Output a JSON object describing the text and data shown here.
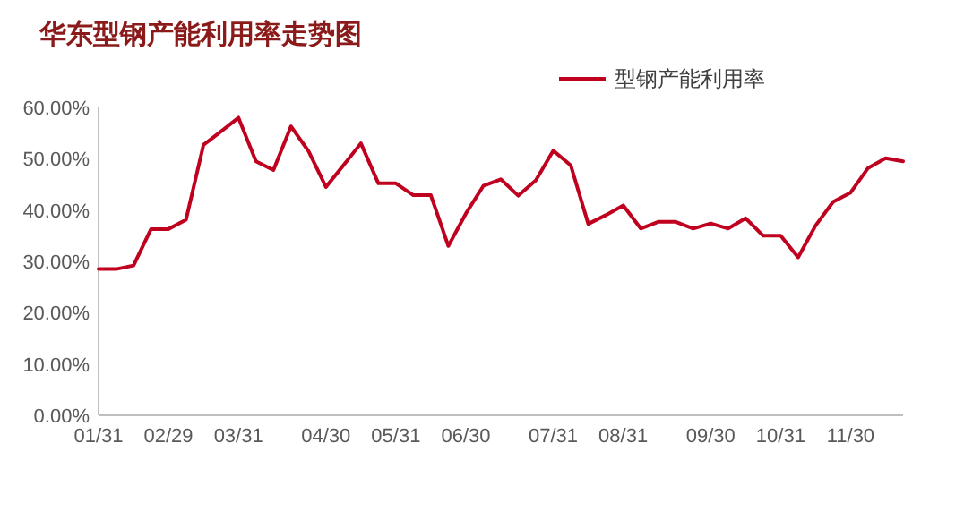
{
  "chart_data": {
    "type": "line",
    "title": "华东型钢产能利用率走势图",
    "categories": [
      "01/31",
      null,
      null,
      null,
      "02/29",
      null,
      null,
      null,
      "03/31",
      null,
      null,
      null,
      null,
      "04/30",
      null,
      null,
      null,
      "05/31",
      null,
      null,
      null,
      "06/30",
      null,
      null,
      null,
      null,
      "07/31",
      null,
      null,
      null,
      "08/31",
      null,
      null,
      null,
      null,
      "09/30",
      null,
      null,
      null,
      "10/31",
      null,
      null,
      null,
      "11/30",
      null,
      null,
      null
    ],
    "series": [
      {
        "name": "型钢产能利用率",
        "color": "#c0001f",
        "values": [
          28.5,
          28.5,
          29.2,
          36.3,
          36.3,
          38.1,
          52.7,
          55.3,
          58.0,
          49.5,
          47.8,
          56.3,
          51.5,
          44.5,
          48.7,
          53.0,
          45.2,
          45.2,
          42.9,
          42.9,
          33.0,
          39.3,
          44.7,
          46.0,
          42.8,
          45.8,
          51.6,
          48.7,
          37.3,
          39.0,
          40.9,
          36.4,
          37.7,
          37.7,
          36.4,
          37.4,
          36.4,
          38.4,
          35.0,
          35.0,
          30.8,
          37.0,
          41.6,
          43.4,
          48.2,
          50.1,
          49.5
        ]
      }
    ],
    "ylim": [
      0,
      60
    ],
    "yticks": [
      {
        "value": 0,
        "label": "0.00%"
      },
      {
        "value": 10,
        "label": "10.00%"
      },
      {
        "value": 20,
        "label": "20.00%"
      },
      {
        "value": 30,
        "label": "30.00%"
      },
      {
        "value": 40,
        "label": "40.00%"
      },
      {
        "value": 50,
        "label": "50.00%"
      },
      {
        "value": 60,
        "label": "60.00%"
      }
    ],
    "legend": "top right"
  }
}
